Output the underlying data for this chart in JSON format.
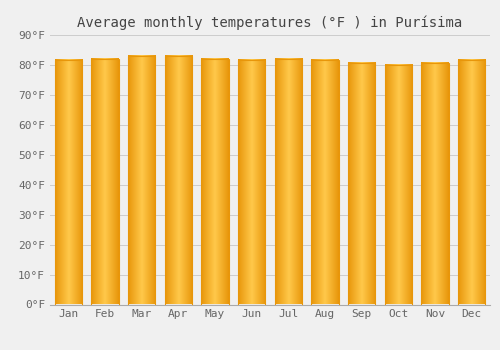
{
  "title": "Average monthly temperatures (°F ) in Purísima",
  "months": [
    "Jan",
    "Feb",
    "Mar",
    "Apr",
    "May",
    "Jun",
    "Jul",
    "Aug",
    "Sep",
    "Oct",
    "Nov",
    "Dec"
  ],
  "values": [
    81.5,
    82.0,
    83.0,
    83.0,
    82.0,
    81.5,
    82.0,
    81.5,
    80.5,
    80.0,
    80.5,
    81.5
  ],
  "bar_color_center": "#FFC84A",
  "bar_color_edge": "#E8960A",
  "background_color": "#f0f0f0",
  "ylim": [
    0,
    90
  ],
  "yticks": [
    0,
    10,
    20,
    30,
    40,
    50,
    60,
    70,
    80,
    90
  ],
  "ylabel_format": "°F",
  "grid_color": "#cccccc",
  "title_fontsize": 10,
  "tick_fontsize": 8,
  "tick_color": "#666666",
  "bar_width": 0.75
}
